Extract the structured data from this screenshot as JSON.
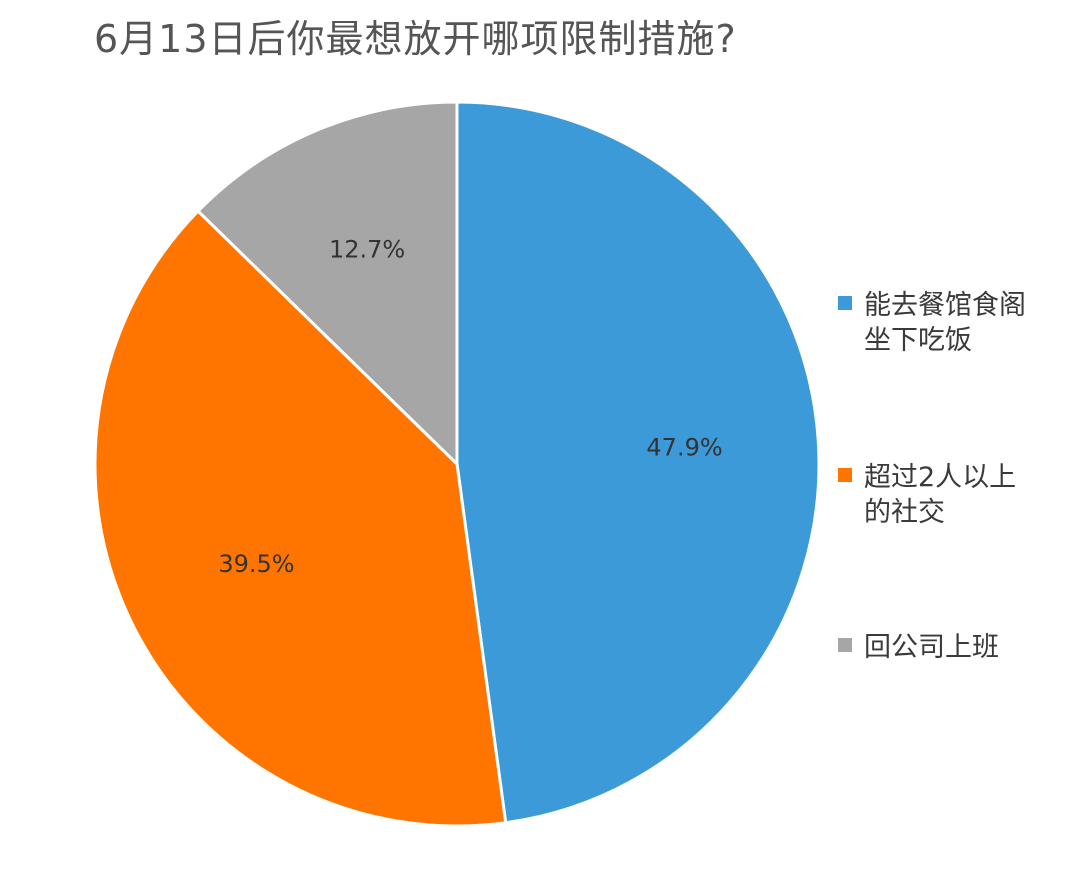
{
  "chart_data": {
    "type": "pie",
    "title": "6月13日后你最想放开哪项限制措施?",
    "slices": [
      {
        "label": "能去餐馆食阁坐下吃饭",
        "value": 47.9,
        "value_label": "47.9%",
        "color": "#3d9ad9"
      },
      {
        "label": "超过2人以上的社交",
        "value": 39.5,
        "value_label": "39.5%",
        "color": "#ff7500"
      },
      {
        "label": "回公司上班",
        "value": 12.7,
        "value_label": "12.7%",
        "color": "#a6a6a6"
      }
    ],
    "legend_position": "right",
    "start_angle": "12 o'clock",
    "direction": "clockwise"
  }
}
